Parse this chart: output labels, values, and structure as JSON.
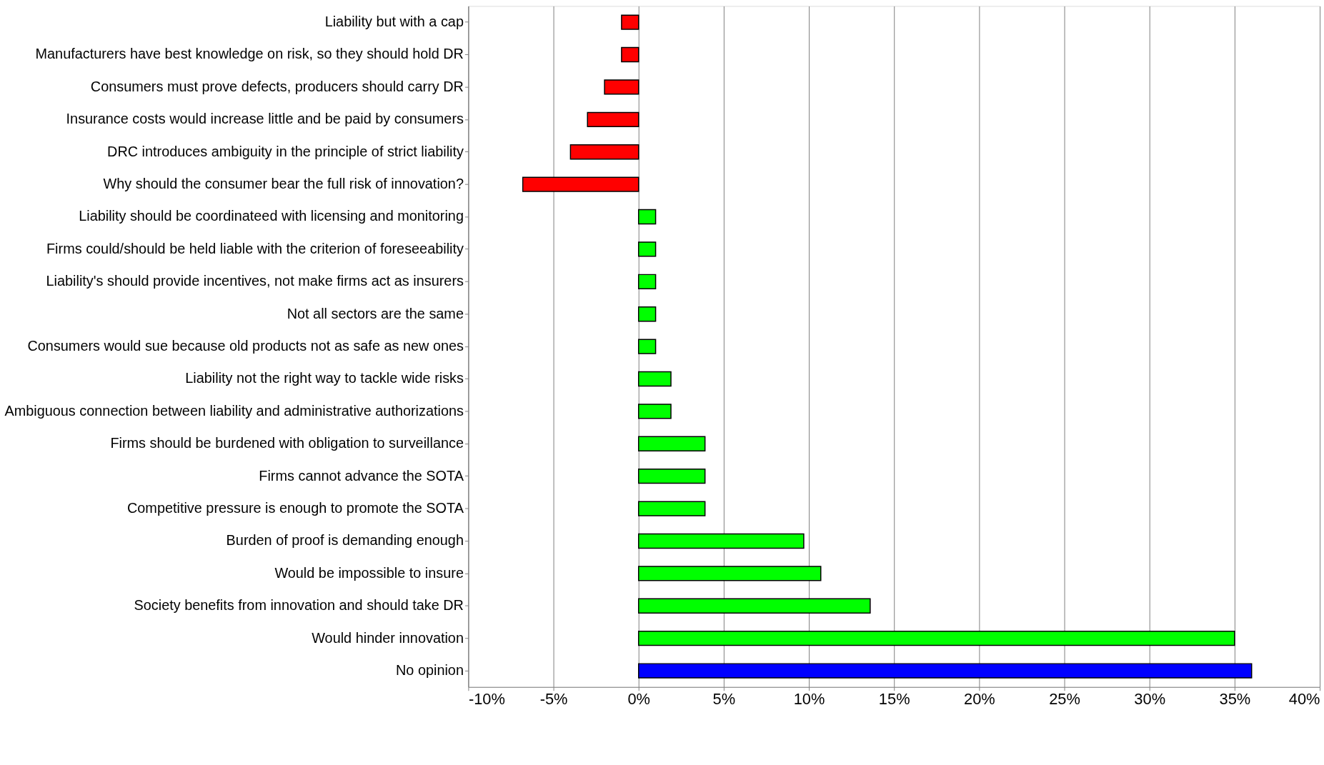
{
  "chart_data": {
    "type": "bar",
    "orientation": "horizontal",
    "categories": [
      "Liability but with a cap",
      "Manufacturers have best knowledge on risk, so they should hold DR",
      "Consumers must prove defects, producers should carry DR",
      "Insurance costs would  increase little and be paid by consumers",
      "DRC introduces ambiguity in the principle of strict liability",
      "Why should the consumer bear the full risk of innovation?",
      "Liability should be coordinateed with licensing and monitoring",
      "Firms could/should be held liable with the criterion of foreseeability",
      "Liability's should provide incentives, not make firms act as insurers",
      "Not all sectors are the same",
      "Consumers would sue because old products not as safe as new ones",
      "Liability not the right way to tackle wide risks",
      "Ambiguous connection between liability and administrative authorizations",
      "Firms should be burdened with obligation to surveillance",
      "Firms cannot advance the SOTA",
      "Competitive pressure is enough to promote the SOTA",
      "Burden of proof is demanding enough",
      "Would be impossible to insure",
      "Society benefits from innovation and should take DR",
      "Would hinder innovation",
      "No opinion"
    ],
    "values": [
      -1,
      -1,
      -2,
      -3,
      -4,
      -6.8,
      1,
      1,
      1,
      1,
      1,
      1.9,
      1.9,
      3.9,
      3.9,
      3.9,
      9.7,
      10.7,
      13.6,
      35,
      36
    ],
    "colors": [
      "#ff0000",
      "#ff0000",
      "#ff0000",
      "#ff0000",
      "#ff0000",
      "#ff0000",
      "#00ff00",
      "#00ff00",
      "#00ff00",
      "#00ff00",
      "#00ff00",
      "#00ff00",
      "#00ff00",
      "#00ff00",
      "#00ff00",
      "#00ff00",
      "#00ff00",
      "#00ff00",
      "#00ff00",
      "#00ff00",
      "#0000ff"
    ],
    "xlim": [
      -10,
      40
    ],
    "xticks": [
      {
        "value": -10,
        "label": "-10%"
      },
      {
        "value": -5,
        "label": "-5%"
      },
      {
        "value": 0,
        "label": "0%"
      },
      {
        "value": 5,
        "label": "5%"
      },
      {
        "value": 10,
        "label": "10%"
      },
      {
        "value": 15,
        "label": "15%"
      },
      {
        "value": 20,
        "label": "20%"
      },
      {
        "value": 25,
        "label": "25%"
      },
      {
        "value": 30,
        "label": "30%"
      },
      {
        "value": 35,
        "label": "35%"
      },
      {
        "value": 40,
        "label": "40%"
      }
    ],
    "grid": "x"
  }
}
